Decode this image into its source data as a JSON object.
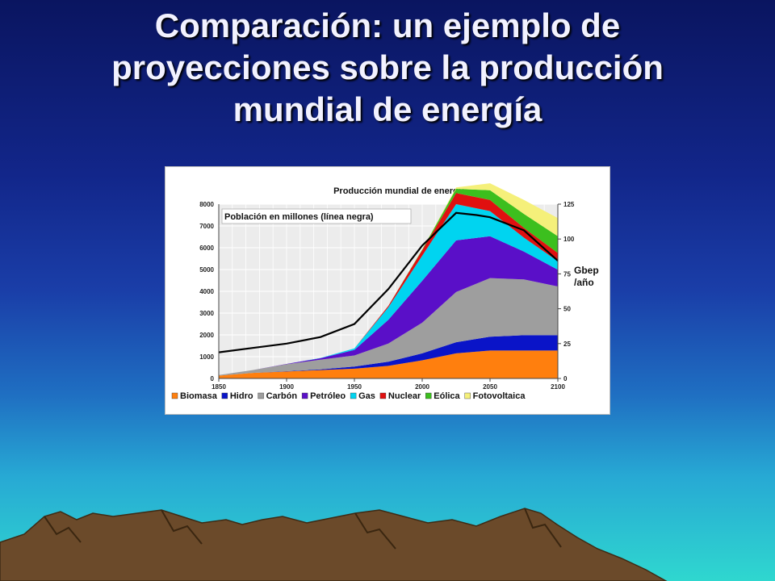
{
  "slide": {
    "title_lines": [
      "Comparación: un ejemplo de",
      "proyecciones sobre la producción",
      "mundial de energía"
    ]
  },
  "colors": {
    "Biomasa": "#ff7f0e",
    "Hidro": "#0a14c8",
    "Carbón": "#9e9e9e",
    "Petróleo": "#5a0fc8",
    "Gas": "#00d4f0",
    "Nuclear": "#e01010",
    "Eólica": "#3cbf1e",
    "Fotovoltaica": "#f5f07a",
    "population_line": "#000000",
    "mountain": "#6b4a2a"
  },
  "chart_data": {
    "type": "area",
    "title": "Producción mundial de energía",
    "annotation": "Población en millones (línea negra)",
    "left_axis": {
      "ylim": [
        0,
        8000
      ],
      "ticks": [
        0,
        1000,
        2000,
        3000,
        4000,
        5000,
        6000,
        7000,
        8000
      ]
    },
    "right_axis": {
      "label_lines": [
        "Gbep",
        "/año"
      ],
      "ylim": [
        0,
        125
      ],
      "ticks": [
        0,
        25,
        50,
        75,
        100,
        125
      ]
    },
    "x": [
      1850,
      1875,
      1900,
      1925,
      1950,
      1975,
      2000,
      2025,
      2050,
      2075,
      2100
    ],
    "xlim": [
      1850,
      2100
    ],
    "xticks": [
      1850,
      1900,
      1950,
      2000,
      2050,
      2100
    ],
    "grid": true,
    "legend_position": "bottom",
    "stacked": true,
    "series": [
      {
        "name": "Biomasa",
        "values": [
          2,
          4,
          5,
          6,
          7,
          9,
          13,
          18,
          20,
          20,
          20
        ]
      },
      {
        "name": "Hidro",
        "values": [
          0,
          0,
          0.2,
          0.5,
          1.5,
          3,
          5,
          8,
          10,
          11,
          11
        ]
      },
      {
        "name": "Carbón",
        "values": [
          0.5,
          2,
          5,
          7,
          8,
          13,
          22,
          36,
          42,
          40,
          35
        ]
      },
      {
        "name": "Petróleo",
        "values": [
          0,
          0,
          0.2,
          1,
          4,
          17,
          30,
          37,
          30,
          20,
          12
        ]
      },
      {
        "name": "Gas",
        "values": [
          0,
          0,
          0,
          0.2,
          1,
          9,
          18,
          26,
          18,
          10,
          6
        ]
      },
      {
        "name": "Nuclear",
        "values": [
          0,
          0,
          0,
          0,
          0,
          1,
          4,
          8,
          8,
          7,
          6
        ]
      },
      {
        "name": "Eólica",
        "values": [
          0,
          0,
          0,
          0,
          0,
          0,
          0.5,
          3,
          7,
          10,
          12
        ]
      },
      {
        "name": "Fotovoltaica",
        "values": [
          0,
          0,
          0,
          0,
          0,
          0,
          0.1,
          1,
          5,
          10,
          13
        ]
      }
    ],
    "population": {
      "name": "Población",
      "x": [
        1850,
        1875,
        1900,
        1925,
        1950,
        1975,
        2000,
        2025,
        2040,
        2050,
        2075,
        2100
      ],
      "values": [
        1200,
        1400,
        1600,
        1900,
        2500,
        4100,
        6100,
        7600,
        7500,
        7400,
        6800,
        5400
      ]
    }
  }
}
